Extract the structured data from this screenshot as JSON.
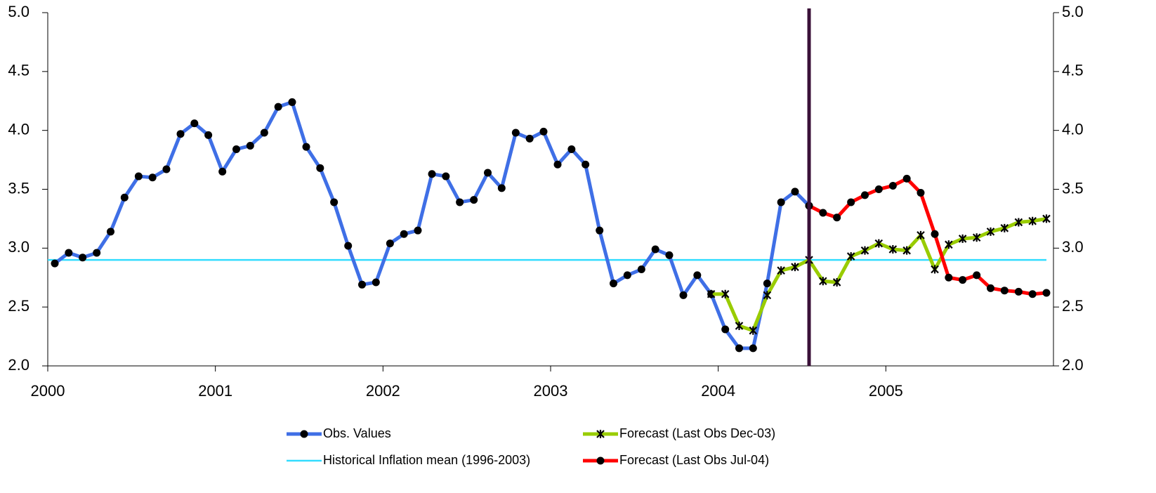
{
  "chart_data": {
    "type": "line",
    "x": [
      2000.042,
      2000.125,
      2000.208,
      2000.292,
      2000.375,
      2000.458,
      2000.542,
      2000.625,
      2000.708,
      2000.792,
      2000.875,
      2000.958,
      2001.042,
      2001.125,
      2001.208,
      2001.292,
      2001.375,
      2001.458,
      2001.542,
      2001.625,
      2001.708,
      2001.792,
      2001.875,
      2001.958,
      2002.042,
      2002.125,
      2002.208,
      2002.292,
      2002.375,
      2002.458,
      2002.542,
      2002.625,
      2002.708,
      2002.792,
      2002.875,
      2002.958,
      2003.042,
      2003.125,
      2003.208,
      2003.292,
      2003.375,
      2003.458,
      2003.542,
      2003.625,
      2003.708,
      2003.792,
      2003.875,
      2003.958,
      2004.042,
      2004.125,
      2004.208,
      2004.292,
      2004.375,
      2004.458,
      2004.542,
      2004.625,
      2004.708,
      2004.792,
      2004.875,
      2004.958,
      2005.042,
      2005.125,
      2005.208,
      2005.292,
      2005.375,
      2005.458,
      2005.542,
      2005.625,
      2005.708,
      2005.792,
      2005.875,
      2005.958
    ],
    "series": [
      {
        "name": "Obs. Values",
        "color": "#3f6fe6",
        "marker": "circle",
        "values": [
          2.87,
          2.96,
          2.92,
          2.96,
          3.14,
          3.43,
          3.61,
          3.6,
          3.67,
          3.97,
          4.06,
          3.96,
          3.65,
          3.84,
          3.87,
          3.98,
          4.2,
          4.24,
          3.86,
          3.68,
          3.39,
          3.02,
          2.69,
          2.71,
          3.04,
          3.12,
          3.15,
          3.63,
          3.61,
          3.39,
          3.41,
          3.64,
          3.51,
          3.98,
          3.93,
          3.99,
          3.71,
          3.84,
          3.71,
          3.15,
          2.7,
          2.77,
          2.82,
          2.99,
          2.94,
          2.6,
          2.77,
          2.61,
          2.31,
          2.15,
          2.15,
          2.7,
          3.39,
          3.48,
          3.36,
          null,
          null,
          null,
          null,
          null,
          null,
          null,
          null,
          null,
          null,
          null,
          null,
          null,
          null,
          null,
          null,
          null
        ]
      },
      {
        "name": "Forecast (Last Obs Dec-03)",
        "color": "#99cc00",
        "marker": "x",
        "values": [
          null,
          null,
          null,
          null,
          null,
          null,
          null,
          null,
          null,
          null,
          null,
          null,
          null,
          null,
          null,
          null,
          null,
          null,
          null,
          null,
          null,
          null,
          null,
          null,
          null,
          null,
          null,
          null,
          null,
          null,
          null,
          null,
          null,
          null,
          null,
          null,
          null,
          null,
          null,
          null,
          null,
          null,
          null,
          null,
          null,
          null,
          null,
          2.61,
          2.61,
          2.34,
          2.3,
          2.6,
          2.81,
          2.84,
          2.9,
          2.72,
          2.71,
          2.93,
          2.98,
          3.04,
          2.99,
          2.98,
          3.11,
          2.82,
          3.03,
          3.08,
          3.09,
          3.14,
          3.17,
          3.22,
          3.23,
          3.25
        ]
      },
      {
        "name": "Historical Inflation mean (1996-2003)",
        "color": "#33ddff",
        "value": 2.9
      },
      {
        "name": "Forecast (Last Obs Jul-04)",
        "color": "#ff0000",
        "marker": "circle",
        "values": [
          null,
          null,
          null,
          null,
          null,
          null,
          null,
          null,
          null,
          null,
          null,
          null,
          null,
          null,
          null,
          null,
          null,
          null,
          null,
          null,
          null,
          null,
          null,
          null,
          null,
          null,
          null,
          null,
          null,
          null,
          null,
          null,
          null,
          null,
          null,
          null,
          null,
          null,
          null,
          null,
          null,
          null,
          null,
          null,
          null,
          null,
          null,
          null,
          null,
          null,
          null,
          null,
          null,
          null,
          3.36,
          3.3,
          3.26,
          3.39,
          3.45,
          3.5,
          3.53,
          3.59,
          3.47,
          3.12,
          2.75,
          2.73,
          2.77,
          2.66,
          2.64,
          2.63,
          2.61,
          2.62
        ]
      }
    ],
    "vline": {
      "x": 2004.542,
      "color": "#3a1038"
    },
    "xlim": [
      2000,
      2006
    ],
    "xticks": [
      2000,
      2001,
      2002,
      2003,
      2004,
      2005
    ],
    "ylim": [
      2,
      5
    ],
    "yticks": [
      {
        "value": 2,
        "label": "2.0"
      },
      2.5,
      {
        "value": 3,
        "label": "3.0"
      },
      3.5,
      {
        "value": 4,
        "label": "4.0"
      },
      4.5,
      {
        "value": 5,
        "label": "5.0"
      }
    ],
    "y2lim": [
      2,
      5
    ],
    "y2ticks": [
      {
        "value": 2,
        "label": "2.0"
      },
      2.5,
      {
        "value": 3,
        "label": "3.0"
      },
      3.5,
      {
        "value": 4,
        "label": "4.0"
      },
      4.5,
      {
        "value": 5,
        "label": "5.0"
      }
    ],
    "grid": false
  }
}
